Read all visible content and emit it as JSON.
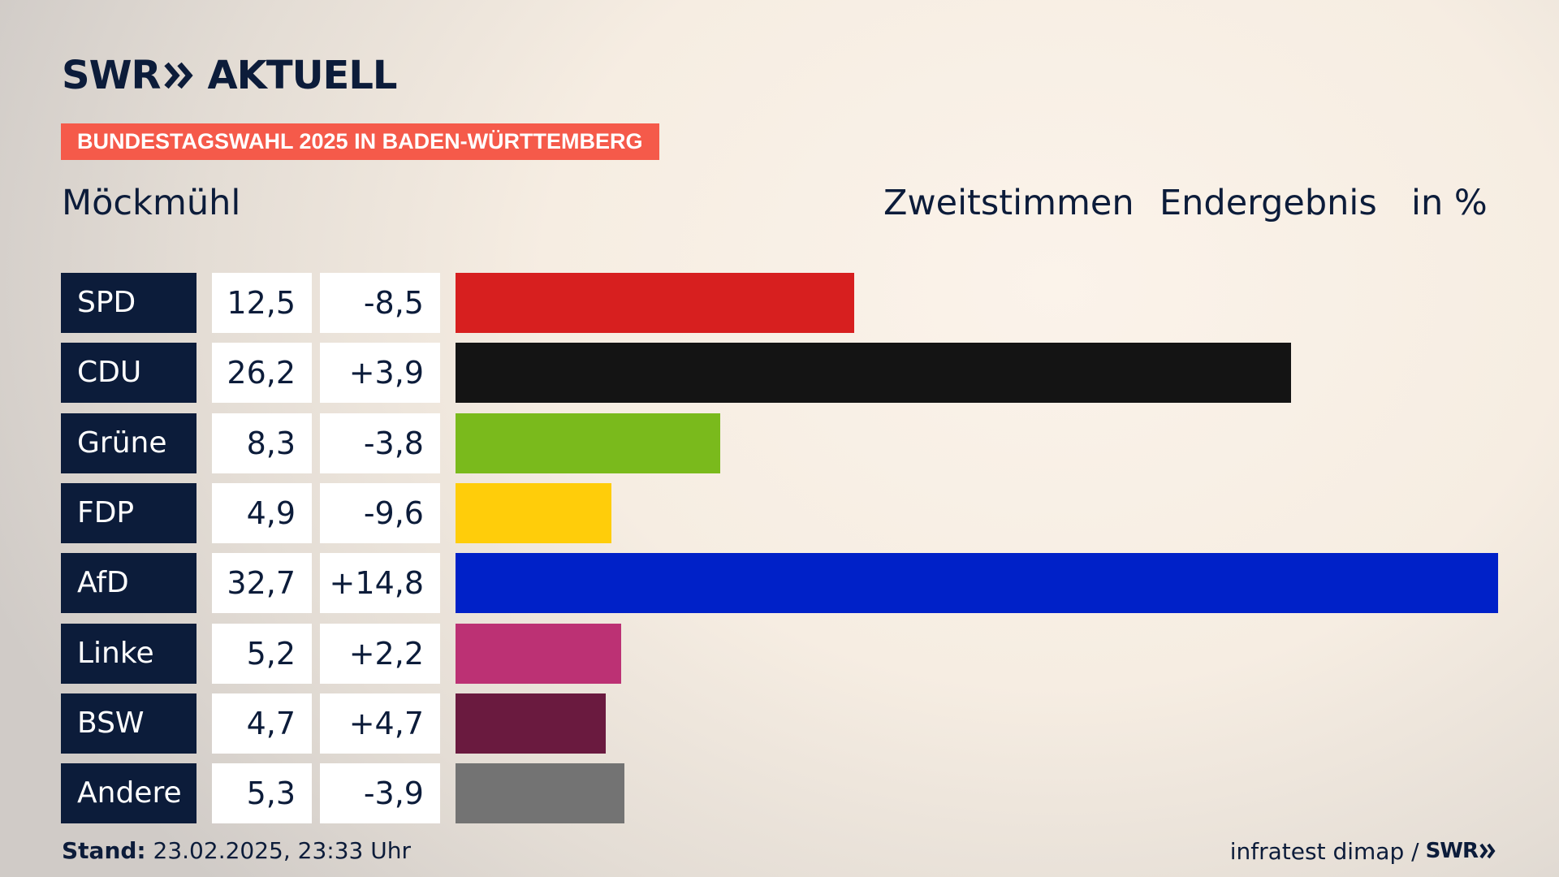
{
  "brand": {
    "logo_left": "SWR",
    "logo_right": "AKTUELL",
    "tag": "BUNDESTAGSWAHL 2025 IN BADEN-WÜRTTEMBERG"
  },
  "header": {
    "place": "Möckmühl",
    "votes": "Zweitstimmen",
    "result": "Endergebnis",
    "unit": "in %"
  },
  "footer": {
    "stand_label": "Stand:",
    "stand_value": "23.02.2025, 23:33 Uhr",
    "source": "infratest dimap /",
    "source_logo": "SWR"
  },
  "colors": {
    "navy": "#0c1c3a",
    "tag_red": "#f55a4a"
  },
  "chart_data": {
    "type": "bar",
    "orientation": "horizontal",
    "unit": "%",
    "categories": [
      "SPD",
      "CDU",
      "Grüne",
      "FDP",
      "AfD",
      "Linke",
      "BSW",
      "Andere"
    ],
    "values": [
      12.5,
      26.2,
      8.3,
      4.9,
      32.7,
      5.2,
      4.7,
      5.3
    ],
    "value_labels": [
      "12,5",
      "26,2",
      "8,3",
      "4,9",
      "32,7",
      "5,2",
      "4,7",
      "5,3"
    ],
    "change_labels": [
      "-8,5",
      "+3,9",
      "-3,8",
      "-9,6",
      "+14,8",
      "+2,2",
      "+4,7",
      "-3,9"
    ],
    "changes": [
      -8.5,
      3.9,
      -3.8,
      -9.6,
      14.8,
      2.2,
      4.7,
      -3.9
    ],
    "colors": [
      "#d71f1f",
      "#141414",
      "#7aba1c",
      "#ffcd0a",
      "#0021c8",
      "#bc3174",
      "#6a1a3f",
      "#737373"
    ],
    "xlim": [
      0,
      32.7
    ]
  }
}
